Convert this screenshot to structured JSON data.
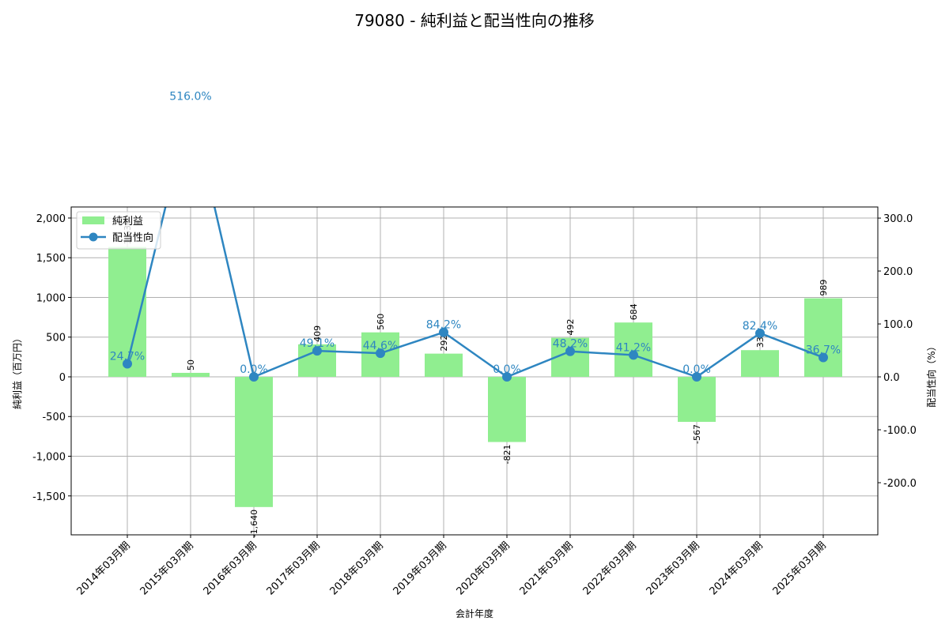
{
  "chart_data": {
    "type": "bar+line",
    "title": "79080 - 純利益と配当性向の推移",
    "xlabel": "会計年度",
    "ylabel_left": "純利益（百万円）",
    "ylabel_right": "配当性向（%）",
    "categories": [
      "2014年03月期",
      "2015年03月期",
      "2016年03月期",
      "2017年03月期",
      "2018年03月期",
      "2019年03月期",
      "2020年03月期",
      "2021年03月期",
      "2022年03月期",
      "2023年03月期",
      "2024年03月期",
      "2025年03月期"
    ],
    "series": [
      {
        "name": "純利益",
        "type": "bar",
        "axis": "left",
        "color": "#90EE90",
        "values": [
          1636,
          50,
          -1640,
          409,
          560,
          292,
          -821,
          492,
          684,
          -567,
          336,
          989
        ],
        "labels": [
          "1,636",
          "50",
          "-1,640",
          "409",
          "560",
          "292",
          "-821",
          "492",
          "684",
          "-567",
          "336",
          "989"
        ]
      },
      {
        "name": "配当性向",
        "type": "line",
        "axis": "right",
        "color": "#2E86C1",
        "values": [
          24.7,
          516.0,
          0.0,
          49.1,
          44.6,
          84.2,
          0.0,
          48.2,
          41.2,
          0.0,
          82.4,
          36.7
        ],
        "labels": [
          "24.7%",
          "516.0%",
          "0.0%",
          "49.1%",
          "44.6%",
          "84.2%",
          "0.0%",
          "48.2%",
          "41.2%",
          "0.0%",
          "82.4%",
          "36.7%"
        ]
      }
    ],
    "ylim_left": [
      -1990,
      2139
    ],
    "ylim_right": [
      -298.5,
      321
    ],
    "yticks_left": [
      -1500,
      -1000,
      -500,
      0,
      500,
      1000,
      1500,
      2000
    ],
    "yticks_left_labels": [
      "-1,500",
      "-1,000",
      "-500",
      "0",
      "500",
      "1,000",
      "1,500",
      "2,000"
    ],
    "yticks_right": [
      -200,
      -100,
      0,
      100,
      200,
      300
    ],
    "yticks_right_labels": [
      "-200.0",
      "-100.0",
      "0.0",
      "100.0",
      "200.0",
      "300.0"
    ],
    "grid": true,
    "legend_position": "upper left"
  }
}
